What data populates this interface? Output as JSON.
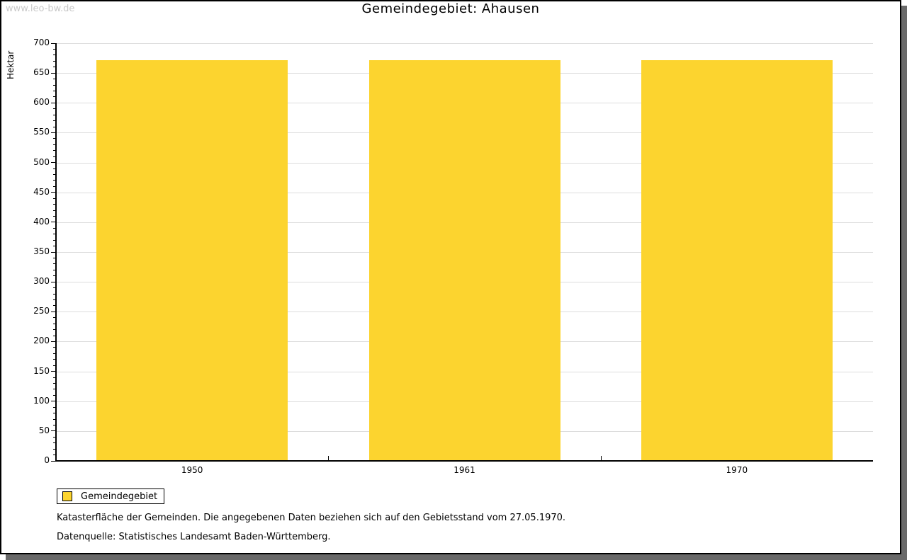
{
  "page": {
    "watermark": "www.leo-bw.de",
    "title": "Gemeindegebiet: Ahausen"
  },
  "chart_data": {
    "type": "bar",
    "title": "Gemeindegebiet: Ahausen",
    "categories": [
      "1950",
      "1961",
      "1970"
    ],
    "series": [
      {
        "name": "Gemeindegebiet",
        "values": [
          672,
          672,
          672
        ]
      }
    ],
    "xlabel": "",
    "ylabel": "Hektar",
    "ylim": [
      0,
      700
    ],
    "y_major_tick": 50,
    "y_minor_tick": 10,
    "grid": true,
    "legend_position": "bottom-left",
    "bar_color": "#FCD42F"
  },
  "legend": {
    "items": [
      {
        "label": "Gemeindegebiet",
        "swatch_color": "#FCD42F"
      }
    ]
  },
  "footnotes": {
    "line1": "Katasterfläche der Gemeinden. Die angegebenen Daten beziehen sich auf den Gebietsstand vom 27.05.1970.",
    "line2": "Datenquelle: Statistisches Landesamt Baden-Württemberg."
  },
  "colors": {
    "bar": "#FCD42F",
    "grid": "#DDDDDD",
    "axis": "#000000",
    "watermark": "#C9C9C9",
    "frame_shadow": "#696969"
  }
}
